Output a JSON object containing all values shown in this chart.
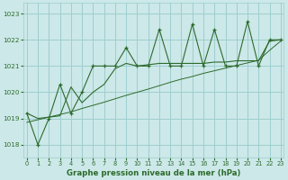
{
  "title": "Graphe pression niveau de la mer (hPa)",
  "bg_color": "#cce8e8",
  "grid_color": "#9ecece",
  "line_color": "#2d6b2d",
  "xlim": [
    -0.3,
    23.3
  ],
  "ylim": [
    1017.5,
    1023.4
  ],
  "yticks": [
    1018,
    1019,
    1020,
    1021,
    1022,
    1023
  ],
  "xticks": [
    0,
    1,
    2,
    3,
    4,
    5,
    6,
    7,
    8,
    9,
    10,
    11,
    12,
    13,
    14,
    15,
    16,
    17,
    18,
    19,
    20,
    21,
    22,
    23
  ],
  "hours": [
    0,
    1,
    2,
    3,
    4,
    5,
    6,
    7,
    8,
    9,
    10,
    11,
    12,
    13,
    14,
    15,
    16,
    17,
    18,
    19,
    20,
    21,
    22,
    23
  ],
  "series_jagged": [
    1019.2,
    1018.0,
    1019.0,
    1020.3,
    1019.2,
    1020.0,
    1021.0,
    1021.0,
    1021.0,
    1021.7,
    1021.0,
    1021.0,
    1022.4,
    1021.0,
    1021.0,
    1022.6,
    1021.0,
    1022.4,
    1021.0,
    1021.0,
    1022.7,
    1021.0,
    1022.0,
    1022.0
  ],
  "series_smooth": [
    1019.2,
    1019.0,
    1019.05,
    1019.1,
    1020.2,
    1019.6,
    1020.0,
    1020.3,
    1020.9,
    1021.1,
    1021.0,
    1021.05,
    1021.1,
    1021.1,
    1021.1,
    1021.1,
    1021.1,
    1021.15,
    1021.15,
    1021.2,
    1021.2,
    1021.2,
    1021.95,
    1022.0
  ],
  "series_linear": [
    1018.85,
    1018.95,
    1019.05,
    1019.15,
    1019.25,
    1019.38,
    1019.5,
    1019.62,
    1019.75,
    1019.88,
    1020.0,
    1020.12,
    1020.25,
    1020.38,
    1020.5,
    1020.6,
    1020.72,
    1020.82,
    1020.92,
    1021.02,
    1021.12,
    1021.22,
    1021.6,
    1021.95
  ]
}
